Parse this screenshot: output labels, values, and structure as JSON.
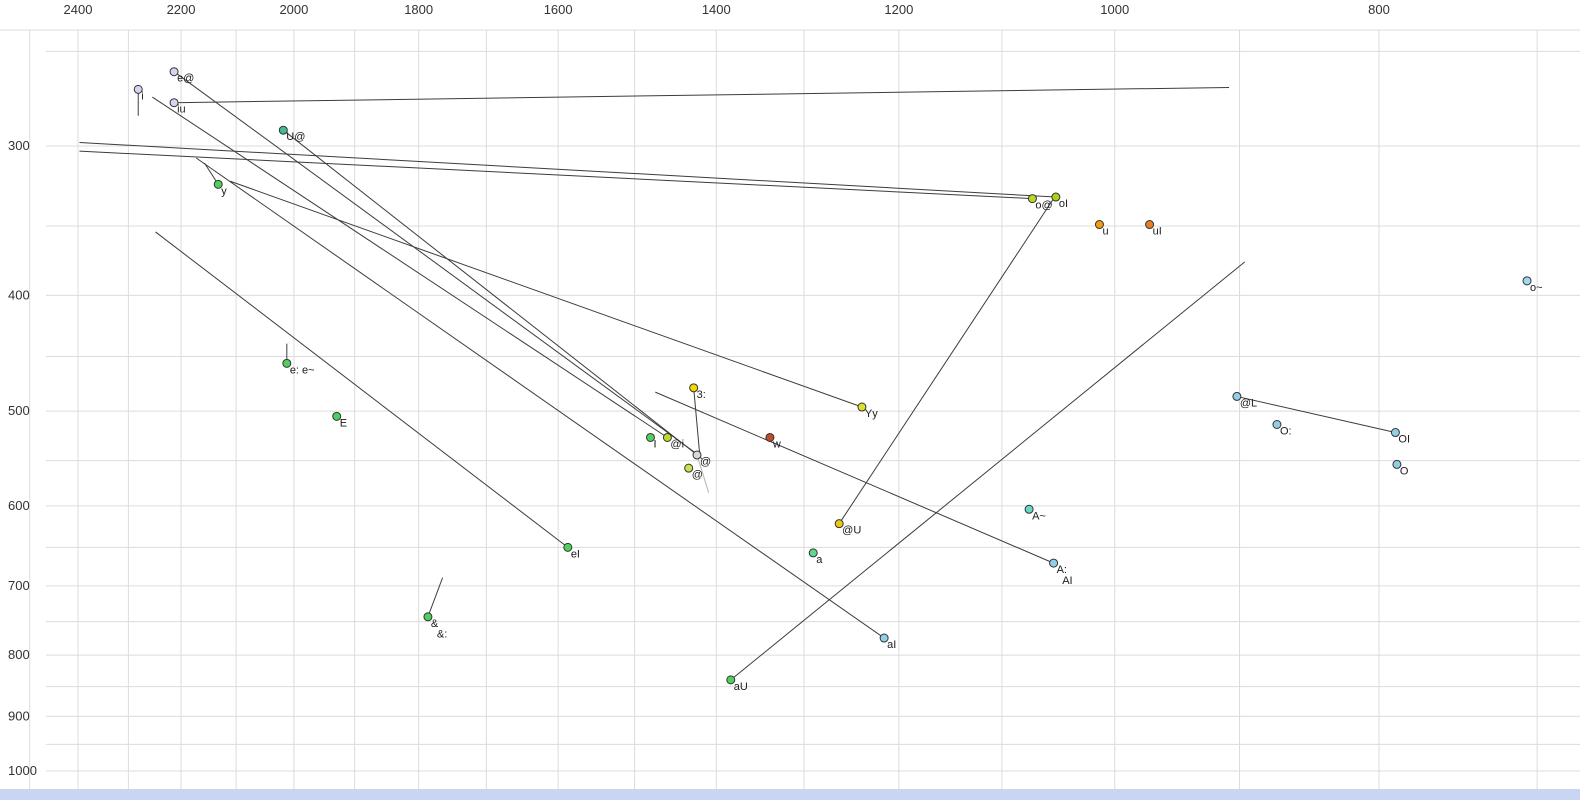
{
  "chart_data": {
    "type": "scatter",
    "description": "Vowel formant plot (F2 horizontal reversed log scale, F1 vertical reversed log scale) with diphthong trajectory lines",
    "x_axis": {
      "scale": "log",
      "reversed": true,
      "tick_labels": [
        2400,
        2200,
        2000,
        1800,
        1600,
        1400,
        1200,
        1000,
        800
      ],
      "gridlines": [
        2500,
        2400,
        2300,
        2200,
        2100,
        2000,
        1900,
        1800,
        1700,
        1600,
        1500,
        1400,
        1300,
        1200,
        1100,
        1000,
        900,
        800,
        700
      ],
      "anchors": [
        [
          2400,
          78
        ],
        [
          800,
          1379
        ]
      ]
    },
    "y_axis": {
      "scale": "log",
      "reversed": true,
      "tick_labels": [
        300,
        400,
        500,
        600,
        700,
        800,
        900,
        1000
      ],
      "gridlines": [
        250,
        300,
        350,
        400,
        450,
        500,
        550,
        600,
        650,
        700,
        750,
        800,
        850,
        900,
        950,
        1000
      ],
      "anchors": [
        [
          300,
          146
        ],
        [
          1000,
          771
        ]
      ]
    },
    "styles": {
      "grid_color": "#dcdcdc",
      "plot_top_border_y": 30,
      "line_color": "#3c3c3c",
      "light_line_color": "#b5b5b5",
      "marker_stroke": "#333333",
      "marker_radius": 4,
      "label_color": "#1c1c1c",
      "muted_label_color": "#8f8f8f",
      "axis_label_color": "#333333",
      "bottom_strip_color": "#c9d5f2",
      "grid_left_start": 46
    },
    "points": [
      {
        "label": "e@",
        "f2": 2213,
        "f1": 260,
        "color": "#d9d2f2"
      },
      {
        "label": "i",
        "f2": 2281,
        "f1": 269,
        "color": "#d9d2f2"
      },
      {
        "label": "iu",
        "f2": 2213,
        "f1": 276,
        "color": "#d9d2f2"
      },
      {
        "label": "U@",
        "f2": 2018,
        "f1": 291,
        "color": "#3fbf8f"
      },
      {
        "label": "y",
        "f2": 2132,
        "f1": 323,
        "color": "#4ecf5e"
      },
      {
        "label": "o@",
        "f2": 1072,
        "f1": 332,
        "color": "#b8d822"
      },
      {
        "label": "oI",
        "f2": 1051,
        "f1": 331,
        "color": "#a8d318"
      },
      {
        "label": "u",
        "f2": 1013,
        "f1": 349,
        "color": "#f39c12"
      },
      {
        "label": "uI",
        "f2": 971,
        "f1": 349,
        "color": "#e67e22"
      },
      {
        "label": "o~",
        "f2": 706,
        "f1": 389,
        "color": "#a5d8f0"
      },
      {
        "label": "e: e~",
        "f2": 2012,
        "f1": 456,
        "color": "#4ecf5e"
      },
      {
        "label": "E",
        "f2": 1929,
        "f1": 505,
        "color": "#4ecf5e"
      },
      {
        "label": "3:",
        "f2": 1427,
        "f1": 478,
        "color": "#f5d800"
      },
      {
        "label": "Yy",
        "f2": 1238,
        "f1": 496,
        "color": "#dede2e"
      },
      {
        "label": "I",
        "f2": 1480,
        "f1": 526,
        "color": "#4ecf5e"
      },
      {
        "label": "@i",
        "f2": 1459,
        "f1": 526,
        "color": "#bedc26"
      },
      {
        "label": "@",
        "f2": 1423,
        "f1": 544,
        "color": "#d9d9d9",
        "muted": true
      },
      {
        "label": "@",
        "f2": 1433,
        "f1": 558,
        "color": "#cde04e"
      },
      {
        "label": "w",
        "f2": 1338,
        "f1": 526,
        "color": "#bf4b28"
      },
      {
        "label": "@L",
        "f2": 902,
        "f1": 486,
        "color": "#92cdea"
      },
      {
        "label": "O:",
        "f2": 872,
        "f1": 513,
        "color": "#92cdea"
      },
      {
        "label": "OI",
        "f2": 789,
        "f1": 521,
        "color": "#92cdea"
      },
      {
        "label": "O",
        "f2": 788,
        "f1": 554,
        "color": "#92cdea"
      },
      {
        "label": "A~",
        "f2": 1075,
        "f1": 604,
        "color": "#66d9c9"
      },
      {
        "label": "@U",
        "f2": 1262,
        "f1": 621,
        "color": "#edc813"
      },
      {
        "label": "a",
        "f2": 1290,
        "f1": 657,
        "color": "#5fd98f"
      },
      {
        "label": "A:",
        "f2": 1053,
        "f1": 670,
        "color": "#92cdea"
      },
      {
        "label": "AI",
        "f2": 1048,
        "f1": 692,
        "marker": false
      },
      {
        "label": "eI",
        "f2": 1587,
        "f1": 650,
        "color": "#4ecf5e"
      },
      {
        "label": "&",
        "f2": 1786,
        "f1": 743,
        "color": "#4ecf5e"
      },
      {
        "label": "&:",
        "f2": 1777,
        "f1": 767,
        "marker": false
      },
      {
        "label": "aI",
        "f2": 1215,
        "f1": 774,
        "color": "#92cdea"
      },
      {
        "label": "aU",
        "f2": 1383,
        "f1": 839,
        "color": "#4ecf5e"
      }
    ],
    "segments": [
      {
        "f2a": 2281,
        "f1a": 268,
        "f2b": 2281,
        "f1b": 283
      },
      {
        "f2a": 2213,
        "f1a": 276,
        "f2b": 908,
        "f1b": 268
      },
      {
        "f2a": 2397,
        "f1a": 298,
        "f2b": 1051,
        "f1b": 331
      },
      {
        "f2a": 2397,
        "f1a": 303,
        "f2b": 1072,
        "f1b": 332
      },
      {
        "f2a": 2213,
        "f1a": 260,
        "f2b": 1423,
        "f1b": 543
      },
      {
        "f2a": 2018,
        "f1a": 291,
        "f2b": 1417,
        "f1b": 548
      },
      {
        "f2a": 2254,
        "f1a": 273,
        "f2b": 1459,
        "f1b": 526
      },
      {
        "f2a": 2111,
        "f1a": 321,
        "f2b": 1238,
        "f1b": 496
      },
      {
        "f2a": 2248,
        "f1a": 354,
        "f2b": 1587,
        "f1b": 650
      },
      {
        "f2a": 2172,
        "f1a": 307,
        "f2b": 1215,
        "f1b": 774
      },
      {
        "f2a": 1383,
        "f1a": 839,
        "f2b": 896,
        "f1b": 375
      },
      {
        "f2a": 1262,
        "f1a": 621,
        "f2b": 1053,
        "f1b": 332
      },
      {
        "f2a": 1053,
        "f1a": 670,
        "f2b": 1474,
        "f1b": 482
      },
      {
        "f2a": 902,
        "f1a": 486,
        "f2b": 789,
        "f1b": 521
      },
      {
        "f2a": 1427,
        "f1a": 478,
        "f2b": 1420,
        "f1b": 541
      },
      {
        "f2a": 1423,
        "f1a": 544,
        "f2b": 1409,
        "f1b": 585,
        "light": true
      },
      {
        "f2a": 2012,
        "f1a": 439,
        "f2b": 2012,
        "f1b": 454
      },
      {
        "f2a": 2132,
        "f1a": 323,
        "f2b": 2157,
        "f1b": 310
      },
      {
        "f2a": 1786,
        "f1a": 743,
        "f2b": 1764,
        "f1b": 689
      }
    ]
  }
}
